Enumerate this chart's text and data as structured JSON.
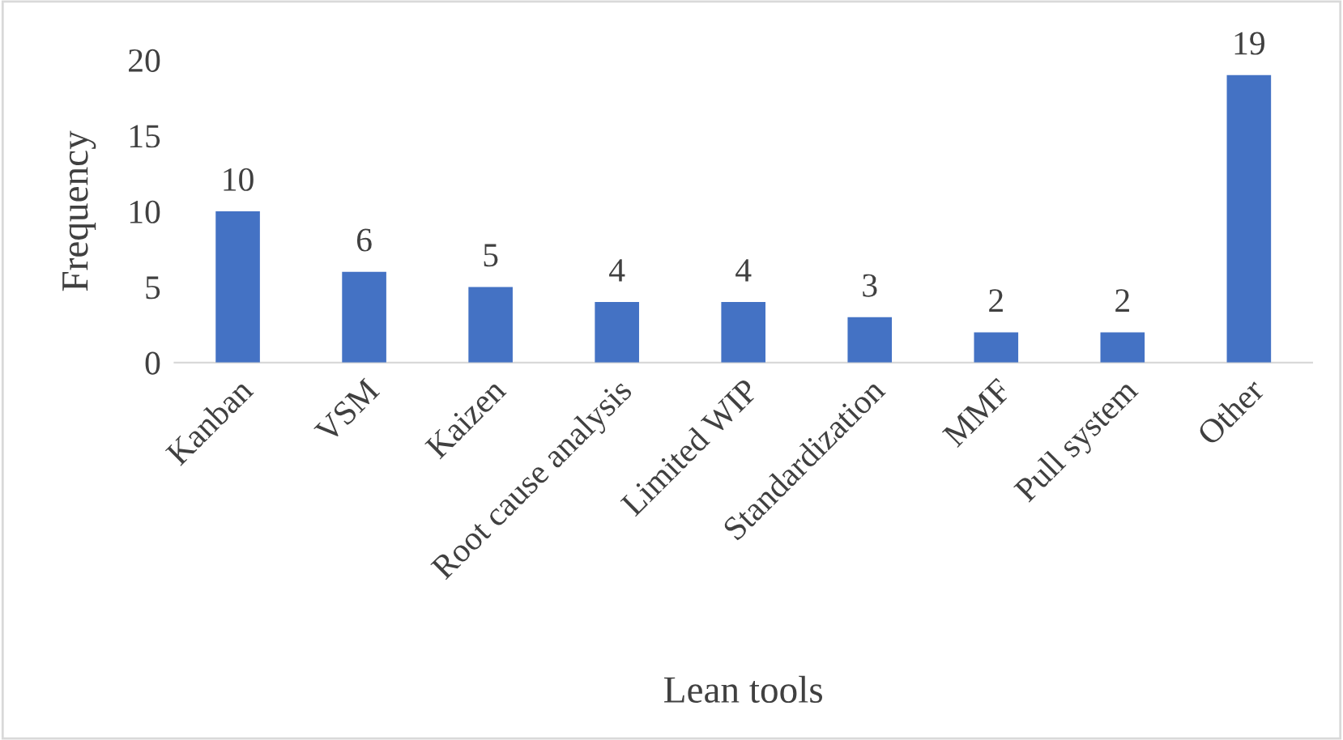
{
  "chart_data": {
    "type": "bar",
    "xlabel": "Lean tools",
    "ylabel": "Frequency",
    "categories": [
      "Kanban",
      "VSM",
      "Kaizen",
      "Root cause analysis",
      "Limited WIP",
      "Standardization",
      "MMF",
      "Pull system",
      "Other"
    ],
    "values": [
      10,
      6,
      5,
      4,
      4,
      3,
      2,
      2,
      19
    ],
    "color": "#4472c4",
    "ylim": [
      0,
      20
    ],
    "yticks": [
      0,
      5,
      10,
      15,
      20
    ],
    "grid": false,
    "data_labels": true
  }
}
